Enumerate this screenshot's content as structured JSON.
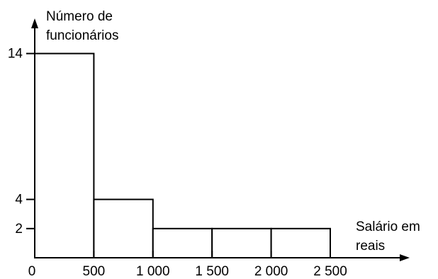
{
  "chart_data": {
    "type": "bar",
    "subtype": "histogram",
    "title": "",
    "ylabel_lines": [
      "Número de",
      "funcionários"
    ],
    "xlabel_lines": [
      "Salário em",
      "reais"
    ],
    "x_origin_label": "0",
    "x_ticks": [
      {
        "value": 500,
        "label": "500"
      },
      {
        "value": 1000,
        "label": "1 000"
      },
      {
        "value": 1500,
        "label": "1 500"
      },
      {
        "value": 2000,
        "label": "2 000"
      },
      {
        "value": 2500,
        "label": "2 500"
      }
    ],
    "y_ticks": [
      {
        "value": 2,
        "label": "2"
      },
      {
        "value": 4,
        "label": "4"
      },
      {
        "value": 14,
        "label": "14"
      }
    ],
    "bins": [
      {
        "from": 0,
        "to": 500,
        "value": 14
      },
      {
        "from": 500,
        "to": 1000,
        "value": 4
      },
      {
        "from": 1000,
        "to": 1500,
        "value": 2
      },
      {
        "from": 1500,
        "to": 2000,
        "value": 2
      },
      {
        "from": 2000,
        "to": 2500,
        "value": 2
      }
    ],
    "xlim": [
      0,
      3000
    ],
    "ylim": [
      0,
      18
    ],
    "grid": false,
    "legend": "none"
  }
}
